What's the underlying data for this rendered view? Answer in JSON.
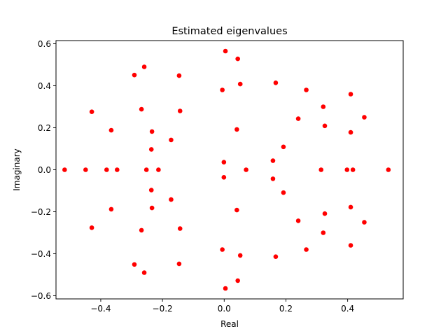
{
  "chart_data": {
    "type": "scatter",
    "title": "Estimated eigenvalues",
    "xlabel": "Real",
    "ylabel": "Imaginary",
    "xlim": [
      -0.545,
      0.58
    ],
    "ylim": [
      -0.615,
      0.615
    ],
    "xticks": [
      -0.4,
      -0.2,
      0.0,
      0.2,
      0.4
    ],
    "xtick_labels": [
      "−0.4",
      "−0.2",
      "0.0",
      "0.2",
      "0.4"
    ],
    "yticks": [
      -0.6,
      -0.4,
      -0.2,
      0.0,
      0.2,
      0.4,
      0.6
    ],
    "ytick_labels": [
      "−0.6",
      "−0.4",
      "−0.2",
      "0.0",
      "0.2",
      "0.4",
      "0.6"
    ],
    "grid": false,
    "marker_color": "#ff0000",
    "points": [
      [
        -0.517,
        0.0
      ],
      [
        -0.449,
        0.0
      ],
      [
        -0.381,
        0.0
      ],
      [
        -0.347,
        0.0
      ],
      [
        -0.252,
        0.0
      ],
      [
        -0.213,
        0.0
      ],
      [
        0.071,
        0.0
      ],
      [
        0.314,
        0.0
      ],
      [
        0.398,
        0.0
      ],
      [
        0.417,
        0.0
      ],
      [
        0.532,
        0.0
      ],
      [
        -0.001,
        0.036
      ],
      [
        -0.001,
        -0.036
      ],
      [
        -0.291,
        0.451
      ],
      [
        -0.291,
        -0.451
      ],
      [
        -0.259,
        0.49
      ],
      [
        -0.259,
        -0.49
      ],
      [
        -0.146,
        0.448
      ],
      [
        -0.146,
        -0.448
      ],
      [
        -0.429,
        0.276
      ],
      [
        -0.429,
        -0.276
      ],
      [
        -0.268,
        0.288
      ],
      [
        -0.268,
        -0.288
      ],
      [
        -0.143,
        0.28
      ],
      [
        -0.143,
        -0.28
      ],
      [
        -0.366,
        0.188
      ],
      [
        -0.366,
        -0.188
      ],
      [
        -0.234,
        0.182
      ],
      [
        -0.234,
        -0.182
      ],
      [
        -0.172,
        0.142
      ],
      [
        -0.172,
        -0.142
      ],
      [
        -0.236,
        0.097
      ],
      [
        -0.236,
        -0.097
      ],
      [
        0.004,
        0.565
      ],
      [
        0.004,
        -0.565
      ],
      [
        0.044,
        0.528
      ],
      [
        0.044,
        -0.528
      ],
      [
        -0.006,
        0.38
      ],
      [
        -0.006,
        -0.38
      ],
      [
        0.052,
        0.408
      ],
      [
        0.052,
        -0.408
      ],
      [
        0.041,
        0.192
      ],
      [
        0.041,
        -0.192
      ],
      [
        0.167,
        0.414
      ],
      [
        0.167,
        -0.414
      ],
      [
        0.266,
        0.38
      ],
      [
        0.266,
        -0.38
      ],
      [
        0.24,
        0.243
      ],
      [
        0.24,
        -0.243
      ],
      [
        0.192,
        0.109
      ],
      [
        0.192,
        -0.109
      ],
      [
        0.158,
        0.043
      ],
      [
        0.158,
        -0.043
      ],
      [
        0.321,
        0.3
      ],
      [
        0.321,
        -0.3
      ],
      [
        0.326,
        0.209
      ],
      [
        0.326,
        -0.209
      ],
      [
        0.41,
        0.36
      ],
      [
        0.41,
        -0.36
      ],
      [
        0.41,
        0.178
      ],
      [
        0.41,
        -0.178
      ],
      [
        0.454,
        0.25
      ],
      [
        0.454,
        -0.25
      ]
    ]
  }
}
